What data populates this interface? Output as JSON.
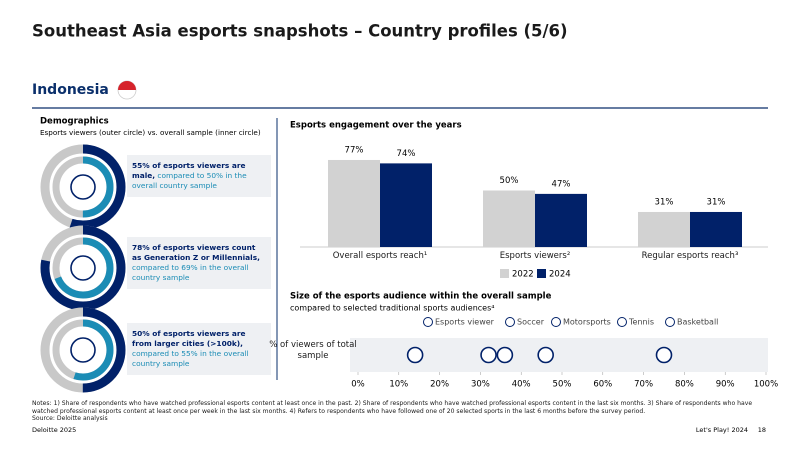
{
  "title": "Southeast Asia esports snapshots – Country profiles (5/6)",
  "country": "Indonesia",
  "demographics": {
    "heading": "Demographics",
    "subheading": "Esports viewers (outer circle) vs. overall sample (inner circle)",
    "items": [
      {
        "bold": "55% of esports viewers are male,",
        "text": "compared to 50% in the overall country sample"
      },
      {
        "bold": "78% of esports viewers count as Generation Z or Millennials,",
        "text": "compared to 69% in the overall country sample"
      },
      {
        "bold": "50% of esports viewers are from larger cities (>100k),",
        "text": "compared to 55% in the overall country sample"
      }
    ]
  },
  "chart_data": [
    {
      "type": "donut",
      "values": [
        55,
        50
      ],
      "colors": [
        "#012169",
        "#1b8cb5"
      ]
    },
    {
      "type": "donut",
      "values": [
        78,
        69
      ],
      "colors": [
        "#012169",
        "#1b8cb5"
      ]
    },
    {
      "type": "donut",
      "values": [
        50,
        55
      ],
      "colors": [
        "#012169",
        "#1b8cb5"
      ]
    },
    {
      "type": "bar",
      "title": "Esports engagement over the years",
      "categories": [
        "Overall esports reach¹",
        "Esports viewers²",
        "Regular esports reach³"
      ],
      "series": [
        {
          "name": "2022",
          "color": "#d2d2d2",
          "values": [
            77,
            50,
            31
          ],
          "value_labels": [
            "77%",
            "50%",
            "31%"
          ]
        },
        {
          "name": "2024",
          "color": "#012169",
          "values": [
            74,
            47,
            31
          ],
          "value_labels": [
            "74%",
            "47%",
            "31%"
          ]
        }
      ]
    },
    {
      "type": "dot",
      "title": "Size of the esports audience within the overall sample",
      "subtitle": "compared to selected traditional sports audiences⁴",
      "y_label": "% of viewers of total sample",
      "xlim": [
        0,
        100
      ],
      "xticks": [
        {
          "value": 0,
          "label": "0%"
        },
        {
          "value": 10,
          "label": "10%"
        },
        {
          "value": 20,
          "label": "20%"
        },
        {
          "value": 30,
          "label": "30%"
        },
        {
          "value": 40,
          "label": "40%"
        },
        {
          "value": 50,
          "label": "50%"
        },
        {
          "value": 60,
          "label": "60%"
        },
        {
          "value": 70,
          "label": "70%"
        },
        {
          "value": 80,
          "label": "80%"
        },
        {
          "value": 90,
          "label": "90%"
        },
        {
          "value": 100,
          "label": "100%"
        }
      ],
      "series": [
        {
          "name": "Esports viewer",
          "color": "#012169",
          "values": [
            46
          ]
        },
        {
          "name": "Soccer",
          "color": "#012169",
          "values": [
            75
          ]
        },
        {
          "name": "Motorsports",
          "color": "#012169",
          "values": [
            36
          ]
        },
        {
          "name": "Tennis",
          "color": "#012169",
          "values": [
            14
          ]
        },
        {
          "name": "Basketball",
          "color": "#012169",
          "values": [
            32
          ]
        }
      ]
    }
  ],
  "notes": "Notes: 1) Share of respondents who have watched professional esports content at least once in the past. 2) Share of respondents who have watched professional esports content in the last six months. 3) Share of respondents who have watched professional esports content at least once per week in the last six months. 4) Refers to respondents who have followed one of 20 selected sports in the last 6 months before the survey period.",
  "source": "Source: Deloitte analysis",
  "footer": {
    "left": "Deloitte 2025",
    "right": "Let's Play! 2024",
    "page": "18"
  }
}
